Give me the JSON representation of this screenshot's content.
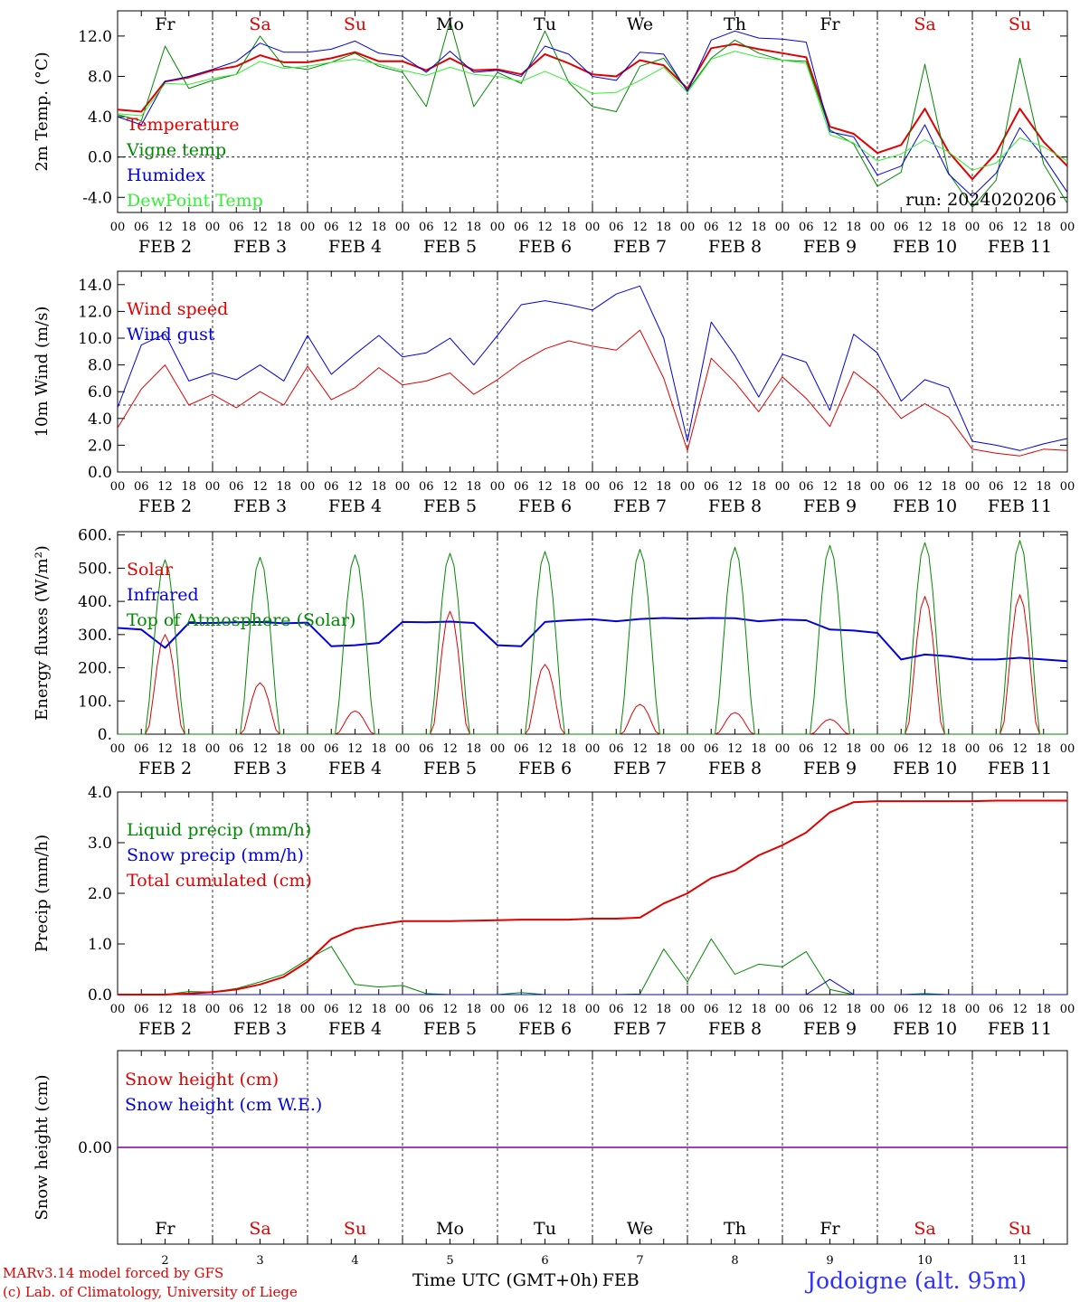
{
  "run_label": "run: 2024020206",
  "days": [
    {
      "wd": "Fr",
      "num": "2",
      "color": "#000000"
    },
    {
      "wd": "Sa",
      "num": "3",
      "color": "#e00000"
    },
    {
      "wd": "Su",
      "num": "4",
      "color": "#e00000"
    },
    {
      "wd": "Mo",
      "num": "5",
      "color": "#000000"
    },
    {
      "wd": "Tu",
      "num": "6",
      "color": "#000000"
    },
    {
      "wd": "We",
      "num": "7",
      "color": "#000000"
    },
    {
      "wd": "Th",
      "num": "8",
      "color": "#000000"
    },
    {
      "wd": "Fr",
      "num": "9",
      "color": "#000000"
    },
    {
      "wd": "Sa",
      "num": "10",
      "color": "#e00000"
    },
    {
      "wd": "Su",
      "num": "11",
      "color": "#e00000"
    }
  ],
  "hour_labels": [
    "00",
    "06",
    "12",
    "18"
  ],
  "final_hour_label": "00",
  "month": "FEB",
  "footer": {
    "line1": "MARv3.14 model forced by GFS",
    "line2": "(c) Lab. of Climatology, University of Liege",
    "site": "Jodoigne (alt. 95m)",
    "xlabel": "Time UTC (GMT+0h)",
    "month_label": "FEB"
  },
  "chart_data": [
    {
      "type": "line",
      "ylabel": "2m Temp. (°C)",
      "ylim": [
        -5.5,
        14.5
      ],
      "yticks": [
        "12.0",
        "8.0",
        "4.0",
        "0.0",
        "-4.0"
      ],
      "ytick_values": [
        12,
        8,
        4,
        0,
        -4
      ],
      "refline": 0,
      "x_hours": [
        0,
        6,
        12,
        18,
        24,
        30,
        36,
        42,
        48,
        54,
        60,
        66,
        72,
        78,
        84,
        90,
        96,
        102,
        108,
        114,
        120,
        126,
        132,
        138,
        144,
        150,
        156,
        162,
        168,
        174,
        180,
        186,
        192,
        198,
        204,
        210,
        216,
        222,
        228,
        234,
        240
      ],
      "series": [
        {
          "name": "Temperature",
          "color": "#e00000",
          "width": 2,
          "values": [
            4.7,
            4.5,
            7.5,
            7.9,
            8.6,
            9.0,
            10.1,
            9.4,
            9.4,
            9.8,
            10.4,
            9.5,
            9.5,
            8.6,
            9.8,
            8.6,
            8.7,
            8.2,
            10.2,
            9.3,
            8.2,
            8.0,
            9.6,
            9.1,
            6.8,
            10.8,
            11.2,
            10.7,
            10.3,
            9.9,
            3.0,
            2.3,
            0.4,
            1.2,
            4.8,
            0.5,
            -2.2,
            0.4,
            4.8,
            1.5,
            -0.9
          ]
        },
        {
          "name": "Vigne temp",
          "color": "#008800",
          "width": 1,
          "values": [
            4.2,
            3.6,
            11.0,
            6.8,
            7.6,
            8.2,
            12.0,
            9.0,
            8.7,
            9.4,
            10.3,
            9.0,
            8.4,
            5.0,
            13.5,
            5.0,
            8.4,
            7.3,
            12.5,
            7.4,
            5.0,
            4.5,
            9.0,
            9.8,
            6.6,
            9.8,
            11.6,
            10.3,
            9.6,
            9.5,
            2.7,
            1.3,
            -2.9,
            -1.5,
            9.2,
            -1.6,
            -5.0,
            -2.3,
            9.8,
            -0.7,
            -4.6
          ]
        },
        {
          "name": "Humidex",
          "color": "#0000e0",
          "width": 1,
          "values": [
            4.0,
            3.2,
            7.5,
            8.0,
            8.7,
            9.5,
            11.3,
            10.4,
            10.4,
            10.7,
            11.5,
            10.3,
            10.0,
            8.4,
            10.5,
            8.4,
            8.6,
            8.0,
            11.0,
            10.2,
            8.0,
            7.6,
            10.4,
            10.2,
            6.5,
            11.6,
            12.5,
            11.8,
            11.7,
            11.4,
            2.5,
            2.0,
            -1.8,
            -0.9,
            3.2,
            -1.7,
            -3.9,
            -1.6,
            2.9,
            0.0,
            -3.5
          ]
        },
        {
          "name": "DewPoint Temp",
          "color": "#33ee33",
          "width": 1,
          "values": [
            4.3,
            4.1,
            7.3,
            7.2,
            7.8,
            8.2,
            9.5,
            8.8,
            9.0,
            9.4,
            9.7,
            9.2,
            8.6,
            8.1,
            8.9,
            8.2,
            8.0,
            7.5,
            8.5,
            7.5,
            6.3,
            6.4,
            7.6,
            8.9,
            6.4,
            9.7,
            10.5,
            9.9,
            9.6,
            9.3,
            2.2,
            1.4,
            -0.4,
            0.3,
            1.7,
            0.5,
            -1.3,
            -0.6,
            1.9,
            1.0,
            -0.4
          ]
        }
      ]
    },
    {
      "type": "line",
      "ylabel": "10m Wind (m/s)",
      "ylim": [
        0,
        15
      ],
      "yticks": [
        "14.0",
        "12.0",
        "10.0",
        "8.0",
        "6.0",
        "4.0",
        "2.0",
        "0.0"
      ],
      "ytick_values": [
        14,
        12,
        10,
        8,
        6,
        4,
        2,
        0
      ],
      "refline": 5,
      "x_hours": [
        0,
        6,
        12,
        18,
        24,
        30,
        36,
        42,
        48,
        54,
        60,
        66,
        72,
        78,
        84,
        90,
        96,
        102,
        108,
        114,
        120,
        126,
        132,
        138,
        144,
        150,
        156,
        162,
        168,
        174,
        180,
        186,
        192,
        198,
        204,
        210,
        216,
        222,
        228,
        234,
        240
      ],
      "series": [
        {
          "name": "Wind speed",
          "color": "#e00000",
          "width": 1,
          "values": [
            3.3,
            6.2,
            8.0,
            5.0,
            5.8,
            4.8,
            6.0,
            5.0,
            7.9,
            5.4,
            6.3,
            7.8,
            6.5,
            6.8,
            7.4,
            5.8,
            6.9,
            8.2,
            9.2,
            9.8,
            9.4,
            9.1,
            10.6,
            7.0,
            1.6,
            8.5,
            6.7,
            4.5,
            7.1,
            5.5,
            3.4,
            7.5,
            6.1,
            4.0,
            5.1,
            4.1,
            1.7,
            1.4,
            1.2,
            1.7,
            1.6
          ]
        },
        {
          "name": "Wind gust",
          "color": "#0000e0",
          "width": 1,
          "values": [
            4.8,
            9.5,
            10.3,
            6.8,
            7.4,
            6.9,
            8.0,
            6.8,
            10.2,
            7.3,
            8.8,
            10.2,
            8.6,
            8.9,
            10.0,
            8.0,
            10.2,
            12.5,
            12.8,
            12.5,
            12.1,
            13.3,
            13.9,
            10.0,
            2.3,
            11.2,
            8.7,
            5.6,
            8.8,
            8.2,
            4.6,
            10.3,
            8.9,
            5.3,
            6.9,
            6.3,
            2.3,
            2.0,
            1.6,
            2.1,
            2.5
          ]
        }
      ]
    },
    {
      "type": "line",
      "ylabel": "Energy fluxes (W/m²)",
      "ylim": [
        0,
        610
      ],
      "yticks": [
        "600.",
        "500.",
        "400.",
        "300.",
        "200.",
        "100.",
        "0."
      ],
      "ytick_values": [
        600,
        500,
        400,
        300,
        200,
        100,
        0
      ],
      "refline": null,
      "diurnal": true,
      "series": [
        {
          "name": "Solar",
          "color": "#e00000",
          "width": 1,
          "daily_peaks": [
            300,
            155,
            70,
            370,
            210,
            90,
            65,
            45,
            415,
            420
          ]
        },
        {
          "name": "Infrared",
          "color": "#0000e0",
          "width": 2,
          "x_hours": [
            0,
            6,
            12,
            18,
            24,
            30,
            36,
            42,
            48,
            54,
            60,
            66,
            72,
            78,
            84,
            90,
            96,
            102,
            108,
            114,
            120,
            126,
            132,
            138,
            144,
            150,
            156,
            162,
            168,
            174,
            180,
            186,
            192,
            198,
            204,
            210,
            216,
            222,
            228,
            234,
            240
          ],
          "values": [
            320,
            315,
            260,
            335,
            335,
            337,
            338,
            334,
            336,
            265,
            268,
            275,
            338,
            337,
            339,
            335,
            268,
            265,
            338,
            343,
            346,
            340,
            347,
            350,
            348,
            350,
            349,
            340,
            345,
            343,
            315,
            312,
            305,
            225,
            240,
            235,
            225,
            225,
            230,
            225,
            220
          ]
        },
        {
          "name": "Top of Atmosphere (Solar)",
          "color": "#008800",
          "width": 1,
          "daily_peaks": [
            525,
            533,
            540,
            545,
            550,
            557,
            563,
            568,
            577,
            583
          ]
        }
      ]
    },
    {
      "type": "line",
      "ylabel": "Precip (mm/h)",
      "ylim": [
        0,
        4.0
      ],
      "yticks": [
        "4.0",
        "3.0",
        "2.0",
        "1.0",
        "0.0"
      ],
      "ytick_values": [
        4,
        3,
        2,
        1,
        0
      ],
      "refline": null,
      "x_hours": [
        0,
        6,
        12,
        18,
        24,
        30,
        36,
        42,
        48,
        54,
        60,
        66,
        72,
        78,
        84,
        90,
        96,
        102,
        108,
        114,
        120,
        126,
        132,
        138,
        144,
        150,
        156,
        162,
        168,
        174,
        180,
        186,
        192,
        198,
        204,
        210,
        216,
        222,
        228,
        234,
        240
      ],
      "series": [
        {
          "name": "Liquid precip (mm/h)",
          "color": "#008800",
          "width": 1,
          "values": [
            0,
            0,
            0,
            0.06,
            0.05,
            0.12,
            0.25,
            0.4,
            0.7,
            0.95,
            0.2,
            0.15,
            0.18,
            0.02,
            0,
            0,
            0,
            0.04,
            0,
            0,
            0,
            0,
            0.01,
            0.9,
            0.25,
            1.1,
            0.4,
            0.6,
            0.55,
            0.85,
            0.1,
            0,
            0,
            0,
            0.02,
            0,
            0,
            0,
            0,
            0,
            0
          ]
        },
        {
          "name": "Snow precip (mm/h)",
          "color": "#0000e0",
          "width": 1,
          "values": [
            0,
            0,
            0,
            0,
            0,
            0,
            0,
            0,
            0,
            0,
            0,
            0,
            0,
            0,
            0,
            0,
            0,
            0,
            0,
            0,
            0,
            0,
            0,
            0,
            0,
            0,
            0,
            0,
            0,
            0,
            0.3,
            0,
            0,
            0,
            0,
            0,
            0,
            0,
            0,
            0,
            0
          ]
        },
        {
          "name": "Total cumulated (cm)",
          "color": "#e00000",
          "width": 2,
          "values": [
            0,
            0,
            0,
            0.02,
            0.05,
            0.1,
            0.2,
            0.35,
            0.65,
            1.1,
            1.3,
            1.38,
            1.45,
            1.45,
            1.45,
            1.46,
            1.47,
            1.48,
            1.48,
            1.48,
            1.5,
            1.5,
            1.52,
            1.8,
            2.0,
            2.3,
            2.45,
            2.75,
            2.95,
            3.2,
            3.6,
            3.8,
            3.82,
            3.82,
            3.82,
            3.82,
            3.82,
            3.83,
            3.83,
            3.83,
            3.83
          ]
        }
      ]
    },
    {
      "type": "line",
      "ylabel": "Snow height (cm)",
      "ylim": [
        -1,
        1
      ],
      "yticks": [
        "0.00"
      ],
      "ytick_values": [
        0
      ],
      "refline": null,
      "x_hours": [
        0,
        240
      ],
      "series": [
        {
          "name": "Snow height (cm)",
          "color": "#e00000",
          "width": 1,
          "values": [
            0,
            0
          ]
        },
        {
          "name": "Snow height (cm W.E.)",
          "color": "#0000e0",
          "width": 1,
          "values": [
            0,
            0
          ]
        }
      ]
    }
  ]
}
